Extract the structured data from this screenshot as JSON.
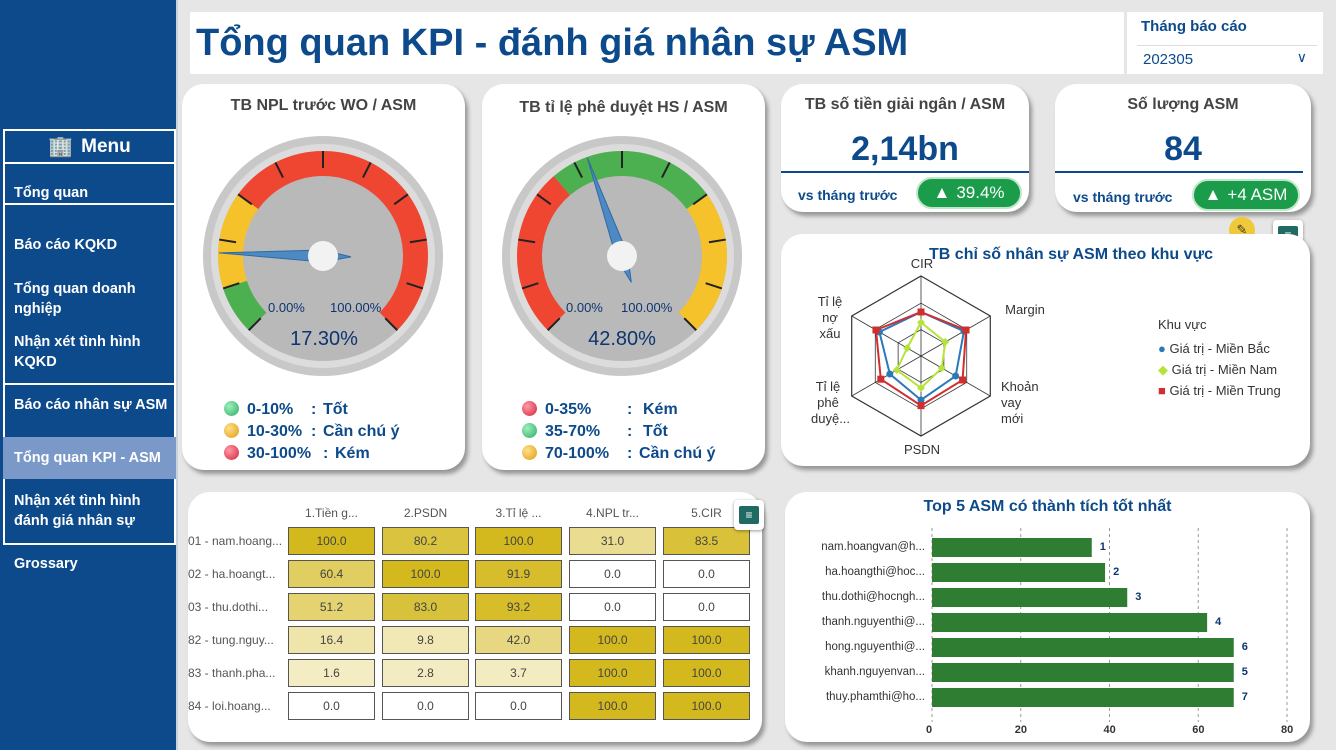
{
  "sidebar": {
    "menu_label": "Menu",
    "menu_icon": "🏢",
    "items": [
      {
        "label": "Tổng quan"
      },
      {
        "label": "Báo cáo KQKD"
      },
      {
        "label": "Tổng quan doanh nghiệp"
      },
      {
        "label": "Nhận xét tình hình KQKD"
      },
      {
        "label": "Báo cáo nhân sự ASM"
      },
      {
        "label": "Tổng quan KPI - ASM"
      },
      {
        "label": "Nhận xét tình hình đánh giá nhân sự"
      },
      {
        "label": "Grossary"
      }
    ]
  },
  "header": {
    "title": "Tổng quan KPI - đánh giá nhân sự ASM",
    "month_label": "Tháng báo cáo",
    "month_value": "202305"
  },
  "gauge1": {
    "title": "TB NPL trước WO / ASM",
    "min": "0.00%",
    "max": "100.00%",
    "value_label": "17.30%",
    "value": 0.173,
    "legend": [
      {
        "range": "0-10%",
        "sep": ":",
        "label": "Tốt",
        "color": "#43c27a"
      },
      {
        "range": "10-30%",
        "sep": ":",
        "label": "Cần chú ý",
        "color": "#f0b429"
      },
      {
        "range": "30-100%",
        "sep": ":",
        "label": "Kém",
        "color": "#e04050"
      }
    ]
  },
  "gauge2": {
    "title": "TB tỉ lệ phê duyệt HS / ASM",
    "min": "0.00%",
    "max": "100.00%",
    "value_label": "42.80%",
    "value": 0.428,
    "legend": [
      {
        "range": "0-35%",
        "sep": ":",
        "label": "Kém",
        "color": "#e04050"
      },
      {
        "range": "35-70%",
        "sep": ":",
        "label": "Tốt",
        "color": "#43c27a"
      },
      {
        "range": "70-100%",
        "sep": ":",
        "label": "Cần chú ý",
        "color": "#f0b429"
      }
    ]
  },
  "kpi1": {
    "title": "TB số tiền giải ngân / ASM",
    "value": "2,14bn",
    "vs": "vs tháng trước",
    "badge": "39.4%",
    "arrow": "▲"
  },
  "kpi2": {
    "title": "Số lượng ASM",
    "value": "84",
    "vs": "vs tháng trước",
    "badge": "+4 ASM",
    "arrow": "▲"
  },
  "radar": {
    "title": "TB chỉ số nhân sự ASM theo khu vực",
    "axes": [
      "CIR",
      "Margin",
      "Khoản vay mới",
      "PSDN",
      "Tỉ lệ phê duyệ...",
      "Tỉ lệ nợ xấu"
    ],
    "legend_title": "Khu vực",
    "series": [
      {
        "name": "Giá trị - Miền Bắc",
        "color": "#2a7ab8",
        "marker": "●",
        "values": [
          0.55,
          0.62,
          0.5,
          0.55,
          0.45,
          0.6
        ]
      },
      {
        "name": "Giá trị - Miền Nam",
        "color": "#b6e33a",
        "marker": "◆",
        "values": [
          0.42,
          0.35,
          0.3,
          0.4,
          0.35,
          0.2
        ]
      },
      {
        "name": "Giá trị - Miền Trung",
        "color": "#d12e2e",
        "marker": "■",
        "values": [
          0.55,
          0.65,
          0.6,
          0.62,
          0.58,
          0.65
        ]
      }
    ]
  },
  "matrix": {
    "columns": [
      "1.Tiền g...",
      "2.PSDN",
      "3.Tỉ lệ ...",
      "4.NPL tr...",
      "5.CIR"
    ],
    "rows": [
      {
        "name": "01 - nam.hoang...",
        "values": [
          "100.0",
          "80.2",
          "100.0",
          "31.0",
          "83.5"
        ]
      },
      {
        "name": "02 - ha.hoangt...",
        "values": [
          "60.4",
          "100.0",
          "91.9",
          "0.0",
          "0.0"
        ]
      },
      {
        "name": "03 - thu.dothi...",
        "values": [
          "51.2",
          "83.0",
          "93.2",
          "0.0",
          "0.0"
        ]
      },
      {
        "name": "82 - tung.nguy...",
        "values": [
          "16.4",
          "9.8",
          "42.0",
          "100.0",
          "100.0"
        ]
      },
      {
        "name": "83 - thanh.pha...",
        "values": [
          "1.6",
          "2.8",
          "3.7",
          "100.0",
          "100.0"
        ]
      },
      {
        "name": "84 - loi.hoang...",
        "values": [
          "0.0",
          "0.0",
          "0.0",
          "100.0",
          "100.0"
        ]
      }
    ]
  },
  "chart_data": {
    "type": "bar",
    "orientation": "horizontal",
    "title": "Top 5 ASM có thành tích tốt nhất",
    "categories": [
      "nam.hoangvan@h...",
      "ha.hoangthi@hoc...",
      "thu.dothi@hocngh...",
      "thanh.nguyenthi@...",
      "hong.nguyenthi@...",
      "khanh.nguyenvan...",
      "thuy.phamthi@ho..."
    ],
    "values": [
      36,
      39,
      44,
      62,
      68,
      68,
      68
    ],
    "ranks": [
      "1",
      "2",
      "3",
      "4",
      "6",
      "5",
      "7"
    ],
    "xticks": [
      "0",
      "20",
      "40",
      "60",
      "80"
    ],
    "xlim": [
      0,
      80
    ],
    "color": "#2e7d32"
  }
}
